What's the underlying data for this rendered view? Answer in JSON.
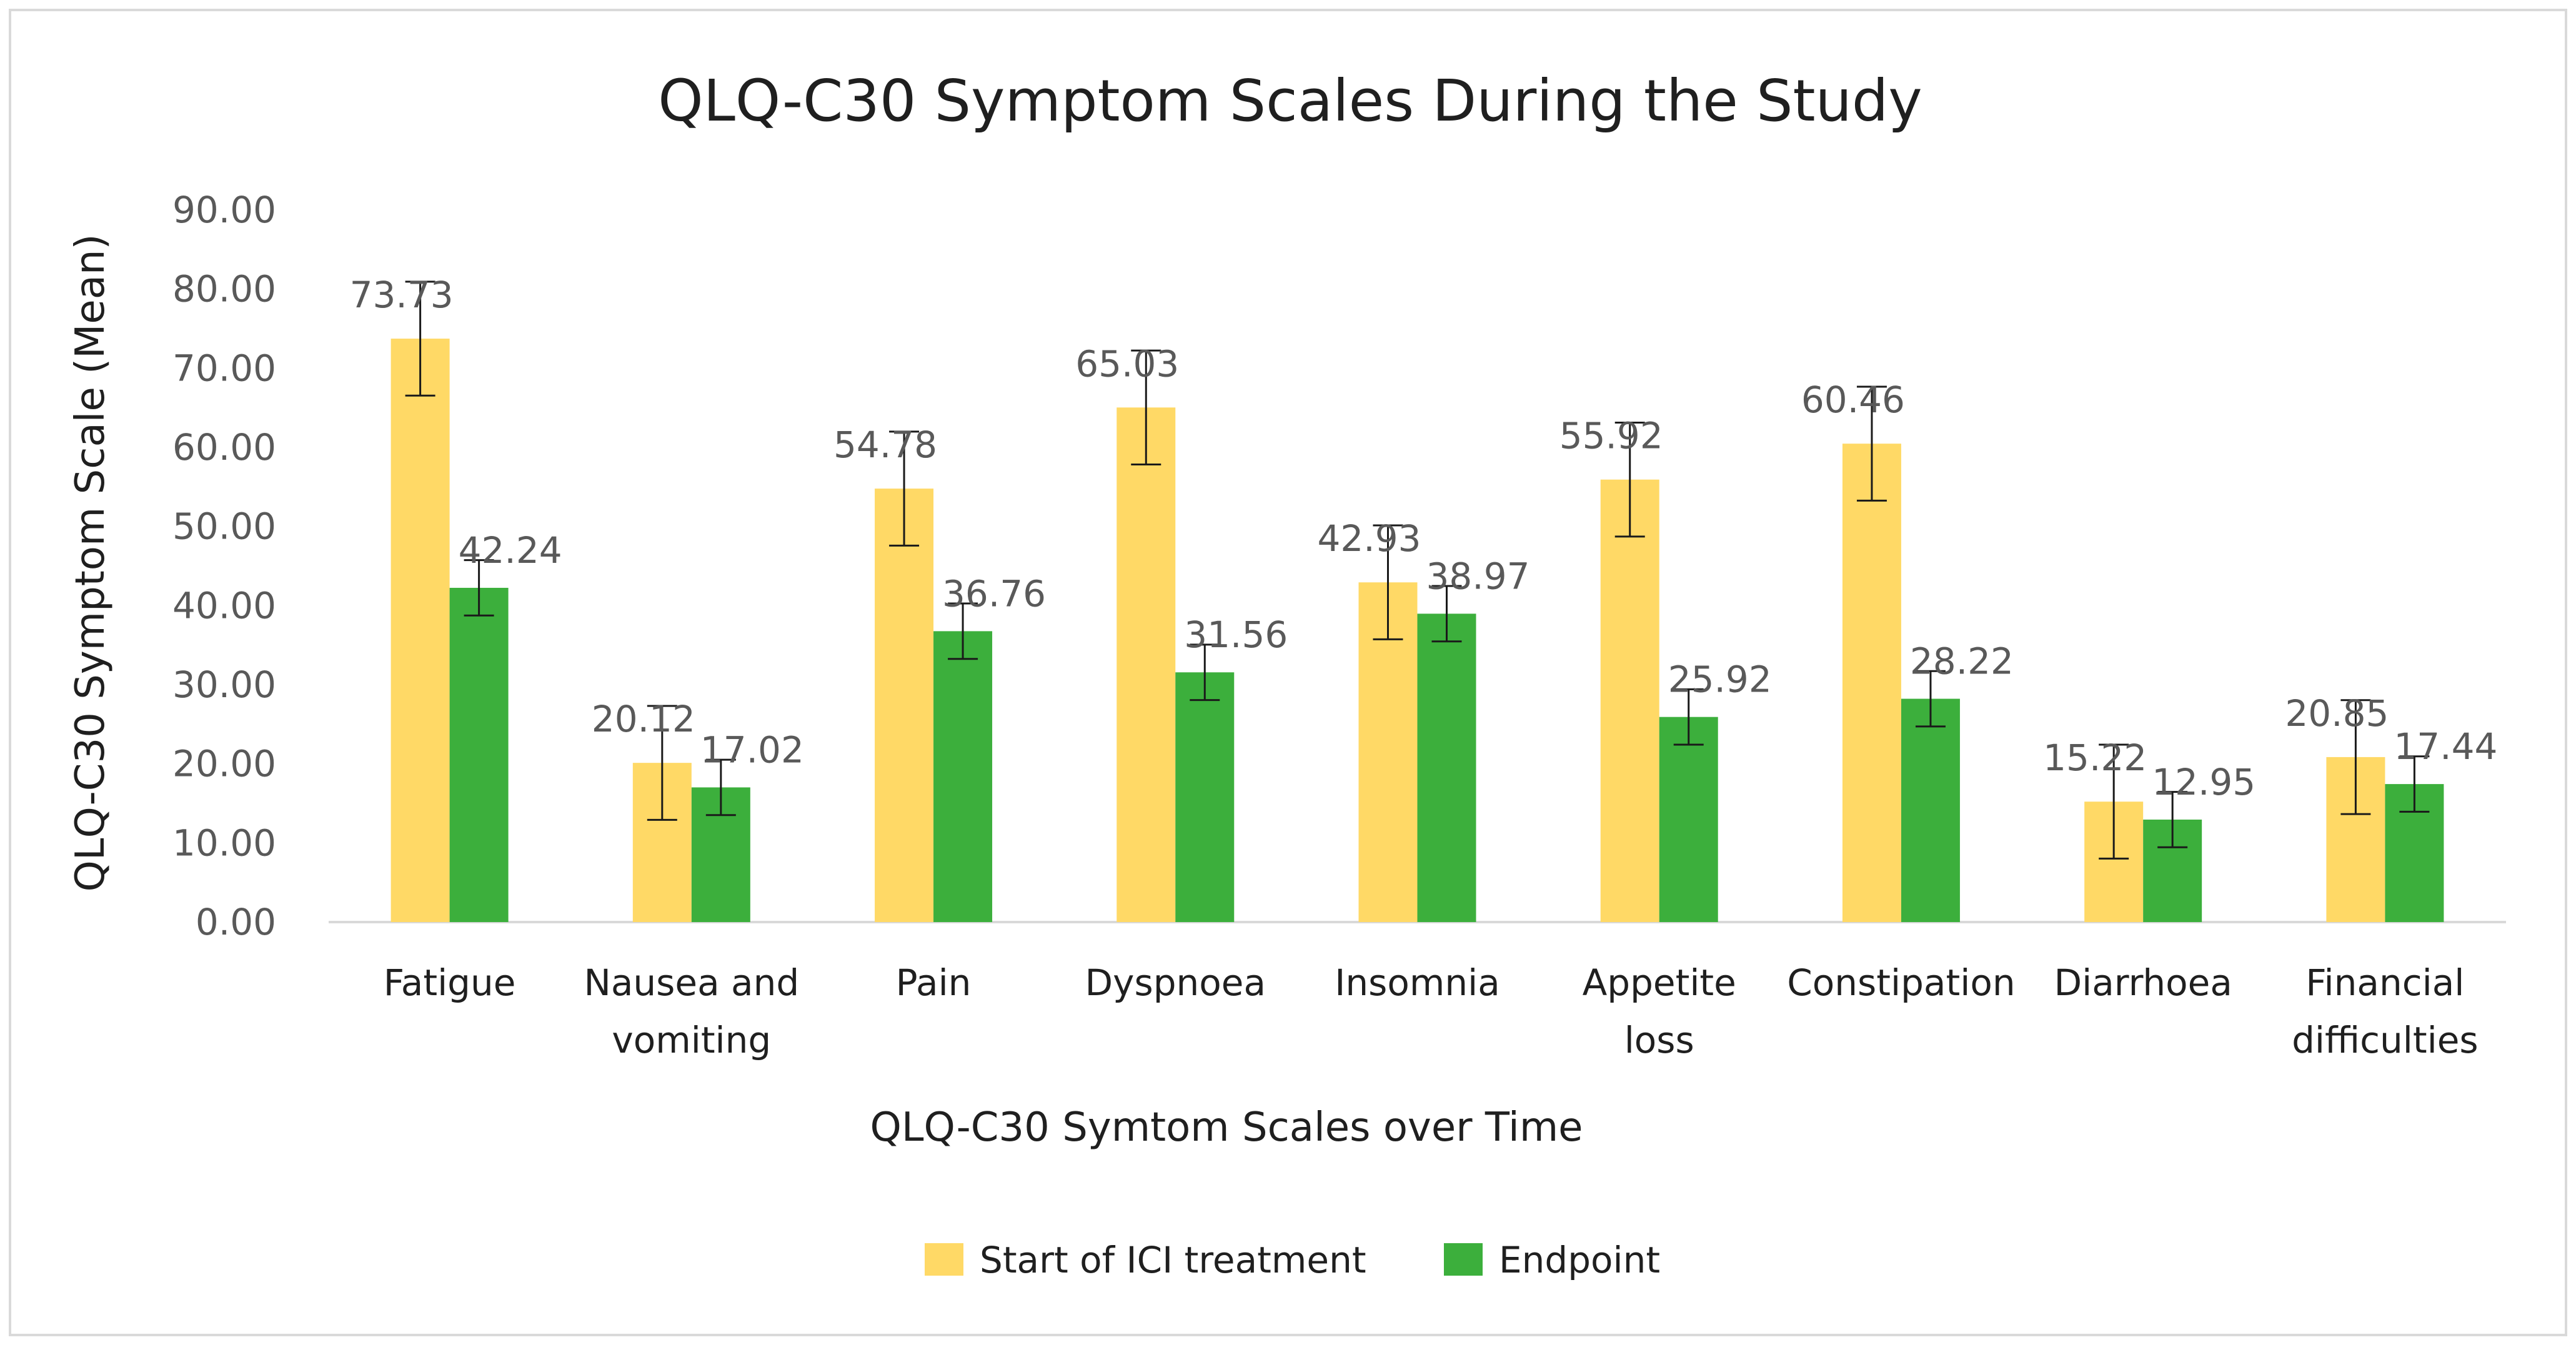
{
  "chart_data": {
    "type": "bar",
    "title": "QLQ-C30 Symptom Scales During the Study",
    "xlabel": "QLQ-C30 Symtom Scales over Time",
    "ylabel": "QLQ-C30 Symptom Scale (Mean)",
    "ylim": [
      0,
      90
    ],
    "yticks": [
      "0.00",
      "10.00",
      "20.00",
      "30.00",
      "40.00",
      "50.00",
      "60.00",
      "70.00",
      "80.00",
      "90.00"
    ],
    "grid": false,
    "legend_position": "bottom",
    "categories": [
      [
        "Fatigue"
      ],
      [
        "Nausea and",
        "vomiting"
      ],
      [
        "Pain"
      ],
      [
        "Dyspnoea"
      ],
      [
        "Insomnia"
      ],
      [
        "Appetite",
        "loss"
      ],
      [
        "Constipation"
      ],
      [
        "Diarrhoea"
      ],
      [
        "Financial",
        "difficulties"
      ]
    ],
    "series": [
      {
        "name": "Start of ICI treatment",
        "color": "#ffd966",
        "values": [
          73.73,
          20.12,
          54.78,
          65.03,
          42.93,
          55.92,
          60.46,
          15.22,
          20.85
        ],
        "labels": [
          "73.73",
          "20.12",
          "54.78",
          "65.03",
          "42.93",
          "55.92",
          "60.46",
          "15.22",
          "20.85"
        ],
        "error": [
          7.2,
          7.2,
          7.2,
          7.2,
          7.2,
          7.2,
          7.2,
          7.2,
          7.2
        ]
      },
      {
        "name": "Endpoint",
        "color": "#3caf3c",
        "values": [
          42.24,
          17.02,
          36.76,
          31.56,
          38.97,
          25.92,
          28.22,
          12.95,
          17.44
        ],
        "labels": [
          "42.24",
          "17.02",
          "36.76",
          "31.56",
          "38.97",
          "25.92",
          "28.22",
          "12.95",
          "17.44"
        ],
        "error": [
          3.5,
          3.5,
          3.5,
          3.5,
          3.5,
          3.5,
          3.5,
          3.5,
          3.5
        ]
      }
    ]
  }
}
